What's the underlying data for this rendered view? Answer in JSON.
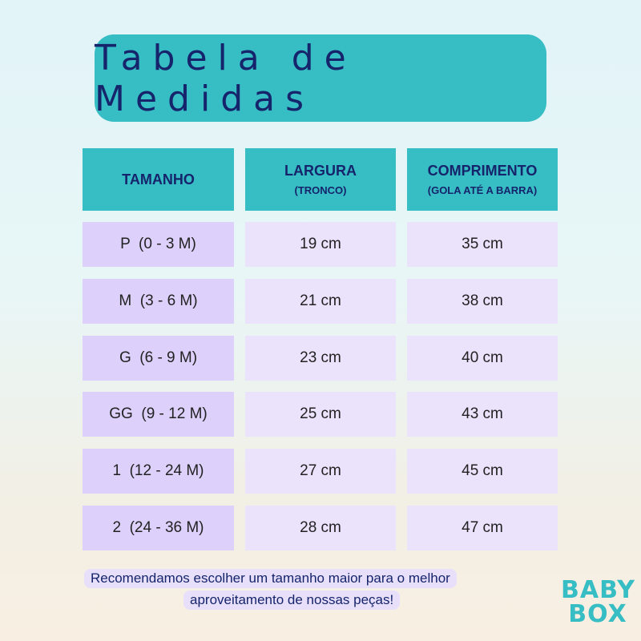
{
  "title": "Tabela de Medidas",
  "headers": [
    {
      "main": "TAMANHO",
      "sub": ""
    },
    {
      "main": "LARGURA",
      "sub": "(TRONCO)"
    },
    {
      "main": "COMPRIMENTO",
      "sub": "(GOLA ATÉ A BARRA)"
    }
  ],
  "rows": [
    [
      "P  (0 - 3 M)",
      "19 cm",
      "35 cm"
    ],
    [
      "M  (3 - 6 M)",
      "21 cm",
      "38 cm"
    ],
    [
      "G  (6 - 9 M)",
      "23 cm",
      "40 cm"
    ],
    [
      "GG  (9 - 12 M)",
      "25 cm",
      "43 cm"
    ],
    [
      "1  (12 - 24 M)",
      "27 cm",
      "45 cm"
    ],
    [
      "2  (24 - 36 M)",
      "28 cm",
      "47 cm"
    ]
  ],
  "note": {
    "line1": "Recomendamos escolher um tamanho maior para o melhor",
    "line2": "aproveitamento de nossas peças!"
  },
  "logo": {
    "line1": "BABY",
    "line2": "BOX"
  },
  "colors": {
    "accent": "#37bdc4",
    "text": "#15246b",
    "size_cell": "#ddd0fb",
    "value_cell": "#ebe2fc"
  }
}
